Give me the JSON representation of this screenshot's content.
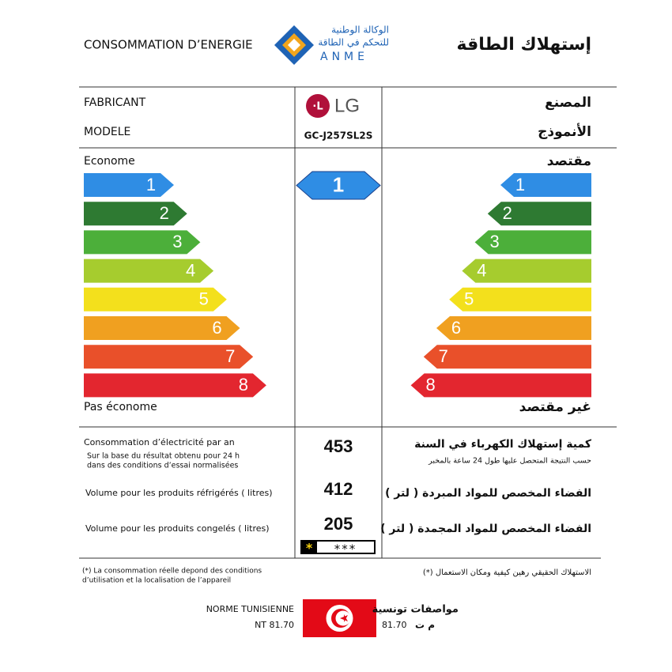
{
  "header": {
    "title_fr": "CONSOMMATION D’ENERGIE",
    "title_ar": "إستهلاك الطاقة",
    "logo_ar_line1": "الوكالة الوطنية",
    "logo_ar_line2": "للتحكم في الطاقة",
    "logo_latin": "ANME"
  },
  "manufacturer": {
    "label_fr": "FABRICANT",
    "label_ar": "المصنع",
    "brand": "LG"
  },
  "model": {
    "label_fr": "MODELE",
    "label_ar": "الأنموذج",
    "value": "GC-J257SL2S"
  },
  "scale": {
    "top_fr": "Econome",
    "top_ar": "مقتصد",
    "bottom_fr": "Pas économe",
    "bottom_ar": "غير مقتصد",
    "classes": [
      {
        "label": "1",
        "color": "#2f8de4"
      },
      {
        "label": "2",
        "color": "#2e7a32"
      },
      {
        "label": "3",
        "color": "#4caf3a"
      },
      {
        "label": "4",
        "color": "#a6cc2e"
      },
      {
        "label": "5",
        "color": "#f3e01c"
      },
      {
        "label": "6",
        "color": "#f0a020"
      },
      {
        "label": "7",
        "color": "#e9502a"
      },
      {
        "label": "8",
        "color": "#e3262f"
      }
    ],
    "rating": "1"
  },
  "consumption": {
    "label_fr": "Consommation d’électricité par an",
    "note_fr": [
      "Sur la base du résultat obtenu pour 24 h",
      "dans des conditions d’essai normalisées"
    ],
    "label_ar": "كمية إستهلاك الكهرباء في السنة",
    "note_ar": "حسب النتيجة المتحصل عليها طول 24 ساعة بالمخبر",
    "value": 453
  },
  "fridge_volume": {
    "label_fr": "Volume pour les produits réfrigérés ( litres)",
    "label_ar": "الفضاء المخصص للمواد المبردة ( لتر )",
    "value": 412
  },
  "freezer_volume": {
    "label_fr": "Volume pour les produits congelés ( litres)",
    "label_ar": "الفضاء المخصص للمواد المجمدة ( لتر )",
    "value": 205,
    "star_main": "*",
    "stars": "***"
  },
  "footnote": {
    "fr": [
      "(*) La consommation réelle depond des conditions",
      "d’utilisation et la localisation de l’appareil"
    ],
    "ar": "(*) الاستهلاك الحقيقي رهين كيفية ومكان الاستعمال"
  },
  "norm": {
    "label_fr": "NORME TUNISIENNE",
    "code_fr": "NT 81.70",
    "label_ar": "مواصفات تونسية",
    "code_ar": "م ت",
    "number": "81.70"
  }
}
